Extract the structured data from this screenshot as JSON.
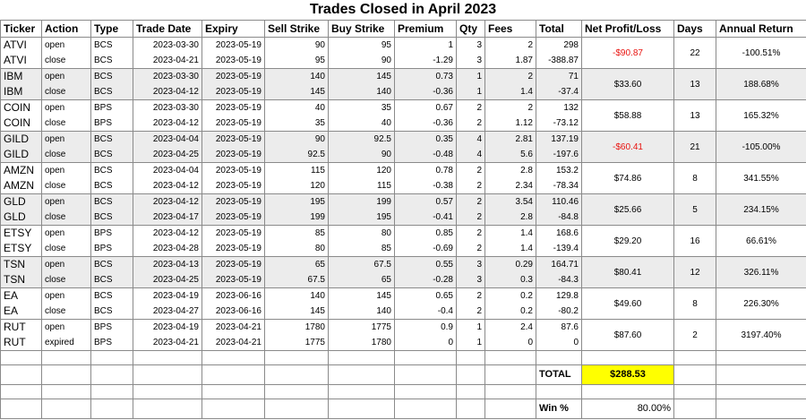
{
  "title": "Trades Closed in April 2023",
  "headers": [
    "Ticker",
    "Action",
    "Type",
    "Trade Date",
    "Expiry",
    "Sell Strike",
    "Buy Strike",
    "Premium",
    "Qty",
    "Fees",
    "Total",
    "Net Profit/Loss",
    "Days",
    "Annual Return"
  ],
  "trades": [
    {
      "rows": [
        {
          "ticker": "ATVI",
          "action": "open",
          "type": "BCS",
          "trade_date": "2023-03-30",
          "expiry": "2023-05-19",
          "sell": "90",
          "buy": "95",
          "premium": "1",
          "qty": "3",
          "fees": "2",
          "total": "298"
        },
        {
          "ticker": "ATVI",
          "action": "close",
          "type": "BCS",
          "trade_date": "2023-04-21",
          "expiry": "2023-05-19",
          "sell": "95",
          "buy": "90",
          "premium": "-1.29",
          "qty": "3",
          "fees": "1.87",
          "total": "-388.87"
        }
      ],
      "net": "-$90.87",
      "negative": true,
      "days": "22",
      "annual": "-100.51%",
      "shaded": false
    },
    {
      "rows": [
        {
          "ticker": "IBM",
          "action": "open",
          "type": "BCS",
          "trade_date": "2023-03-30",
          "expiry": "2023-05-19",
          "sell": "140",
          "buy": "145",
          "premium": "0.73",
          "qty": "1",
          "fees": "2",
          "total": "71"
        },
        {
          "ticker": "IBM",
          "action": "close",
          "type": "BCS",
          "trade_date": "2023-04-12",
          "expiry": "2023-05-19",
          "sell": "145",
          "buy": "140",
          "premium": "-0.36",
          "qty": "1",
          "fees": "1.4",
          "total": "-37.4"
        }
      ],
      "net": "$33.60",
      "negative": false,
      "days": "13",
      "annual": "188.68%",
      "shaded": true
    },
    {
      "rows": [
        {
          "ticker": "COIN",
          "action": "open",
          "type": "BPS",
          "trade_date": "2023-03-30",
          "expiry": "2023-05-19",
          "sell": "40",
          "buy": "35",
          "premium": "0.67",
          "qty": "2",
          "fees": "2",
          "total": "132"
        },
        {
          "ticker": "COIN",
          "action": "close",
          "type": "BPS",
          "trade_date": "2023-04-12",
          "expiry": "2023-05-19",
          "sell": "35",
          "buy": "40",
          "premium": "-0.36",
          "qty": "2",
          "fees": "1.12",
          "total": "-73.12"
        }
      ],
      "net": "$58.88",
      "negative": false,
      "days": "13",
      "annual": "165.32%",
      "shaded": false
    },
    {
      "rows": [
        {
          "ticker": "GILD",
          "action": "open",
          "type": "BCS",
          "trade_date": "2023-04-04",
          "expiry": "2023-05-19",
          "sell": "90",
          "buy": "92.5",
          "premium": "0.35",
          "qty": "4",
          "fees": "2.81",
          "total": "137.19"
        },
        {
          "ticker": "GILD",
          "action": "close",
          "type": "BCS",
          "trade_date": "2023-04-25",
          "expiry": "2023-05-19",
          "sell": "92.5",
          "buy": "90",
          "premium": "-0.48",
          "qty": "4",
          "fees": "5.6",
          "total": "-197.6"
        }
      ],
      "net": "-$60.41",
      "negative": true,
      "days": "21",
      "annual": "-105.00%",
      "shaded": true
    },
    {
      "rows": [
        {
          "ticker": "AMZN",
          "action": "open",
          "type": "BCS",
          "trade_date": "2023-04-04",
          "expiry": "2023-05-19",
          "sell": "115",
          "buy": "120",
          "premium": "0.78",
          "qty": "2",
          "fees": "2.8",
          "total": "153.2"
        },
        {
          "ticker": "AMZN",
          "action": "close",
          "type": "BCS",
          "trade_date": "2023-04-12",
          "expiry": "2023-05-19",
          "sell": "120",
          "buy": "115",
          "premium": "-0.38",
          "qty": "2",
          "fees": "2.34",
          "total": "-78.34"
        }
      ],
      "net": "$74.86",
      "negative": false,
      "days": "8",
      "annual": "341.55%",
      "shaded": false
    },
    {
      "rows": [
        {
          "ticker": "GLD",
          "action": "open",
          "type": "BCS",
          "trade_date": "2023-04-12",
          "expiry": "2023-05-19",
          "sell": "195",
          "buy": "199",
          "premium": "0.57",
          "qty": "2",
          "fees": "3.54",
          "total": "110.46"
        },
        {
          "ticker": "GLD",
          "action": "close",
          "type": "BCS",
          "trade_date": "2023-04-17",
          "expiry": "2023-05-19",
          "sell": "199",
          "buy": "195",
          "premium": "-0.41",
          "qty": "2",
          "fees": "2.8",
          "total": "-84.8"
        }
      ],
      "net": "$25.66",
      "negative": false,
      "days": "5",
      "annual": "234.15%",
      "shaded": true
    },
    {
      "rows": [
        {
          "ticker": "ETSY",
          "action": "open",
          "type": "BPS",
          "trade_date": "2023-04-12",
          "expiry": "2023-05-19",
          "sell": "85",
          "buy": "80",
          "premium": "0.85",
          "qty": "2",
          "fees": "1.4",
          "total": "168.6"
        },
        {
          "ticker": "ETSY",
          "action": "close",
          "type": "BPS",
          "trade_date": "2023-04-28",
          "expiry": "2023-05-19",
          "sell": "80",
          "buy": "85",
          "premium": "-0.69",
          "qty": "2",
          "fees": "1.4",
          "total": "-139.4"
        }
      ],
      "net": "$29.20",
      "negative": false,
      "days": "16",
      "annual": "66.61%",
      "shaded": false
    },
    {
      "rows": [
        {
          "ticker": "TSN",
          "action": "open",
          "type": "BCS",
          "trade_date": "2023-04-13",
          "expiry": "2023-05-19",
          "sell": "65",
          "buy": "67.5",
          "premium": "0.55",
          "qty": "3",
          "fees": "0.29",
          "total": "164.71"
        },
        {
          "ticker": "TSN",
          "action": "close",
          "type": "BCS",
          "trade_date": "2023-04-25",
          "expiry": "2023-05-19",
          "sell": "67.5",
          "buy": "65",
          "premium": "-0.28",
          "qty": "3",
          "fees": "0.3",
          "total": "-84.3"
        }
      ],
      "net": "$80.41",
      "negative": false,
      "days": "12",
      "annual": "326.11%",
      "shaded": true
    },
    {
      "rows": [
        {
          "ticker": "EA",
          "action": "open",
          "type": "BCS",
          "trade_date": "2023-04-19",
          "expiry": "2023-06-16",
          "sell": "140",
          "buy": "145",
          "premium": "0.65",
          "qty": "2",
          "fees": "0.2",
          "total": "129.8"
        },
        {
          "ticker": "EA",
          "action": "close",
          "type": "BCS",
          "trade_date": "2023-04-27",
          "expiry": "2023-06-16",
          "sell": "145",
          "buy": "140",
          "premium": "-0.4",
          "qty": "2",
          "fees": "0.2",
          "total": "-80.2"
        }
      ],
      "net": "$49.60",
      "negative": false,
      "days": "8",
      "annual": "226.30%",
      "shaded": false
    },
    {
      "rows": [
        {
          "ticker": "RUT",
          "action": "open",
          "type": "BPS",
          "trade_date": "2023-04-19",
          "expiry": "2023-04-21",
          "sell": "1780",
          "buy": "1775",
          "premium": "0.9",
          "qty": "1",
          "fees": "2.4",
          "total": "87.6"
        },
        {
          "ticker": "RUT",
          "action": "expired",
          "type": "BPS",
          "trade_date": "2023-04-21",
          "expiry": "2023-04-21",
          "sell": "1775",
          "buy": "1780",
          "premium": "0",
          "qty": "1",
          "fees": "0",
          "total": "0"
        }
      ],
      "net": "$87.60",
      "negative": false,
      "days": "2",
      "annual": "3197.40%",
      "shaded": false
    }
  ],
  "summary": {
    "total_label": "TOTAL",
    "total_value": "$288.53",
    "win_label": "Win %",
    "win_value": "80.00%"
  },
  "colors": {
    "negative": "#e8130f",
    "highlight": "#ffff00",
    "shade": "#ececec"
  }
}
